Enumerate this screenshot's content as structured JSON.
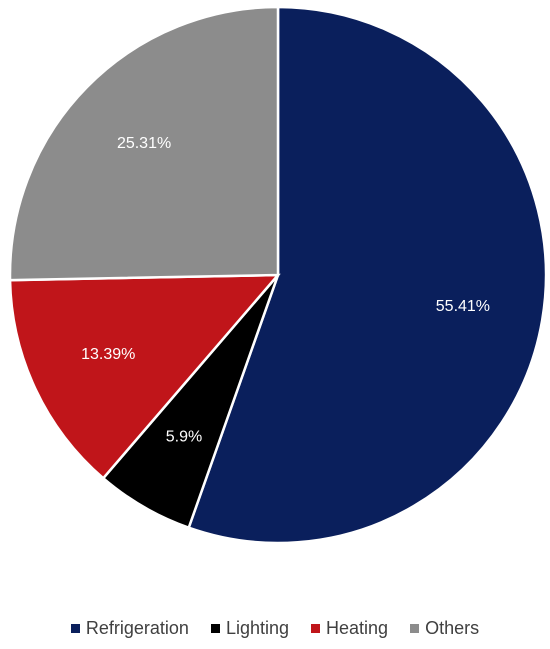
{
  "chart_data": {
    "type": "pie",
    "title": "",
    "categories": [
      "Refrigeration",
      "Lighting",
      "Heating",
      "Others"
    ],
    "values": [
      55.41,
      5.9,
      13.39,
      25.31
    ],
    "labels": [
      "55.41%",
      "5.9%",
      "13.39%",
      "25.31%"
    ],
    "colors": [
      "#0a1f5c",
      "#000000",
      "#c0151a",
      "#8c8c8c"
    ],
    "start_angle": "12 o'clock",
    "direction": "clockwise",
    "legend_position": "bottom"
  }
}
